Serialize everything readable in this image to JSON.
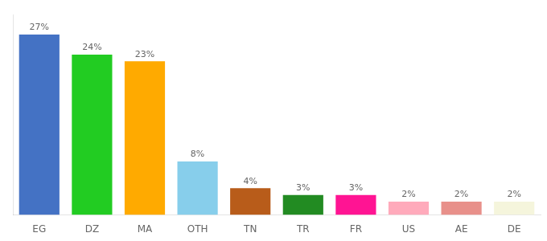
{
  "chart_data": {
    "type": "bar",
    "categories": [
      "EG",
      "DZ",
      "MA",
      "OTH",
      "TN",
      "TR",
      "FR",
      "US",
      "AE",
      "DE"
    ],
    "values": [
      27,
      24,
      23,
      8,
      4,
      3,
      3,
      2,
      2,
      2
    ],
    "value_labels": [
      "27%",
      "24%",
      "23%",
      "8%",
      "4%",
      "3%",
      "3%",
      "2%",
      "2%",
      "2%"
    ],
    "colors": [
      "#4472c4",
      "#22cc22",
      "#ffaa00",
      "#87ceeb",
      "#b85c1a",
      "#228b22",
      "#ff1493",
      "#ffaabb",
      "#e8908a",
      "#f5f5dc"
    ],
    "ylim": [
      0,
      30
    ],
    "data_labels": true,
    "tick_labels": "x",
    "grid": false
  }
}
